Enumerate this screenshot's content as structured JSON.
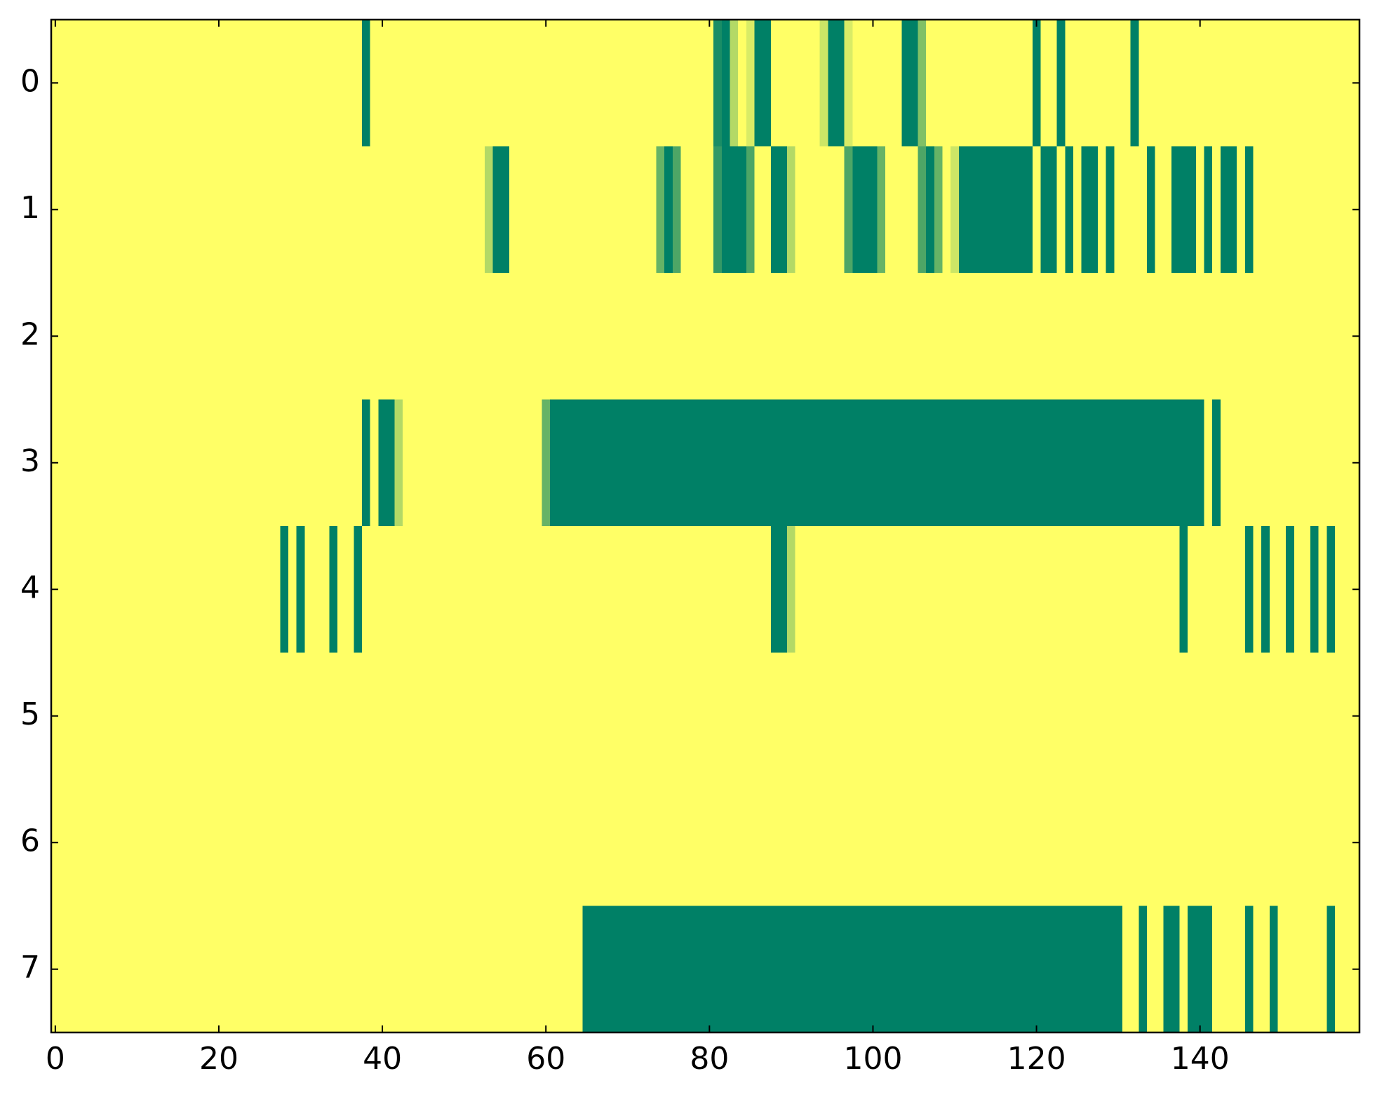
{
  "chart_data": {
    "type": "heatmap",
    "colors": [
      "#008066",
      "#ffff66"
    ],
    "vlim": [
      0,
      1
    ],
    "xlim": [
      -0.5,
      159.5
    ],
    "ylim": [
      7.5,
      -0.5
    ],
    "xticks": [
      0,
      20,
      40,
      60,
      80,
      100,
      120,
      140
    ],
    "yticks": [
      0,
      1,
      2,
      3,
      4,
      5,
      6,
      7
    ],
    "values": [
      [
        1,
        1,
        1,
        1,
        1,
        1,
        1,
        1,
        1,
        1,
        1,
        1,
        1,
        1,
        1,
        1,
        1,
        1,
        1,
        1,
        1,
        1,
        1,
        1,
        1,
        1,
        1,
        1,
        1,
        1,
        1,
        1,
        1,
        1,
        1,
        1,
        1,
        1,
        0,
        1,
        1,
        1,
        1,
        1,
        1,
        1,
        1,
        1,
        1,
        1,
        1,
        1,
        1,
        1,
        1,
        1,
        1,
        1,
        1,
        1,
        1,
        1,
        1,
        1,
        1,
        1,
        1,
        1,
        1,
        1,
        1,
        1,
        1,
        1,
        1,
        1,
        1,
        1,
        1,
        1,
        1,
        0.1,
        0,
        0.7,
        1,
        0.85,
        0,
        0,
        1,
        1,
        1,
        1,
        1,
        1,
        0.8,
        0,
        0,
        0.85,
        1,
        1,
        1,
        1,
        1,
        1,
        0,
        0,
        0.5,
        1,
        1,
        1,
        1,
        1,
        1,
        1,
        1,
        1,
        1,
        1,
        1,
        1,
        0,
        1,
        1,
        0,
        1,
        1,
        1,
        1,
        1,
        1,
        1,
        1,
        0,
        1,
        1,
        1,
        1,
        1,
        1,
        1,
        1,
        1,
        1,
        1,
        1,
        1,
        1,
        1,
        1,
        1,
        1,
        1,
        1,
        1,
        1,
        1,
        1,
        1,
        1,
        1
      ],
      [
        1,
        1,
        1,
        1,
        1,
        1,
        1,
        1,
        1,
        1,
        1,
        1,
        1,
        1,
        1,
        1,
        1,
        1,
        1,
        1,
        1,
        1,
        1,
        1,
        1,
        1,
        1,
        1,
        1,
        1,
        1,
        1,
        1,
        1,
        1,
        1,
        1,
        1,
        1,
        1,
        1,
        1,
        1,
        1,
        1,
        1,
        1,
        1,
        1,
        1,
        1,
        1,
        1,
        0.7,
        0,
        0,
        1,
        1,
        1,
        1,
        1,
        1,
        1,
        1,
        1,
        1,
        1,
        1,
        1,
        1,
        1,
        1,
        1,
        1,
        0.4,
        0,
        0.3,
        1,
        1,
        1,
        1,
        0.2,
        0,
        0,
        0,
        0.3,
        1,
        1,
        0,
        0,
        0.7,
        1,
        1,
        1,
        1,
        1,
        1,
        0.3,
        0,
        0,
        0,
        0.4,
        1,
        1,
        1,
        1,
        0.3,
        0,
        0.4,
        1,
        0.8,
        0,
        0,
        0,
        0,
        0,
        0,
        0,
        0,
        0,
        1,
        0,
        0,
        1,
        0,
        1,
        0,
        0,
        1,
        0,
        1,
        1,
        1,
        1,
        0,
        1,
        1,
        0,
        0,
        0,
        1,
        0,
        1,
        0,
        0,
        1,
        0,
        1,
        1,
        1,
        1,
        1,
        1,
        1,
        1,
        1,
        1,
        1,
        1,
        1
      ],
      [
        1,
        1,
        1,
        1,
        1,
        1,
        1,
        1,
        1,
        1,
        1,
        1,
        1,
        1,
        1,
        1,
        1,
        1,
        1,
        1,
        1,
        1,
        1,
        1,
        1,
        1,
        1,
        1,
        1,
        1,
        1,
        1,
        1,
        1,
        1,
        1,
        1,
        1,
        1,
        1,
        1,
        1,
        1,
        1,
        1,
        1,
        1,
        1,
        1,
        1,
        1,
        1,
        1,
        1,
        1,
        1,
        1,
        1,
        1,
        1,
        1,
        1,
        1,
        1,
        1,
        1,
        1,
        1,
        1,
        1,
        1,
        1,
        1,
        1,
        1,
        1,
        1,
        1,
        1,
        1,
        1,
        1,
        1,
        1,
        1,
        1,
        1,
        1,
        1,
        1,
        1,
        1,
        1,
        1,
        1,
        1,
        1,
        1,
        1,
        1,
        1,
        1,
        1,
        1,
        1,
        1,
        1,
        1,
        1,
        1,
        1,
        1,
        1,
        1,
        1,
        1,
        1,
        1,
        1,
        1,
        1,
        1,
        1,
        1,
        1,
        1,
        1,
        1,
        1,
        1,
        1,
        1,
        1,
        1,
        1,
        1,
        1,
        1,
        1,
        1,
        1,
        1,
        1,
        1,
        1,
        1,
        1,
        1,
        1,
        1,
        1,
        1,
        1,
        1,
        1,
        1,
        1,
        1,
        1,
        1
      ],
      [
        1,
        1,
        1,
        1,
        1,
        1,
        1,
        1,
        1,
        1,
        1,
        1,
        1,
        1,
        1,
        1,
        1,
        1,
        1,
        1,
        1,
        1,
        1,
        1,
        1,
        1,
        1,
        1,
        1,
        1,
        1,
        1,
        1,
        1,
        1,
        1,
        1,
        1,
        0,
        1,
        0,
        0,
        0.7,
        1,
        1,
        1,
        1,
        1,
        1,
        1,
        1,
        1,
        1,
        1,
        1,
        1,
        1,
        1,
        1,
        1,
        0.4,
        0,
        0,
        0,
        0,
        0,
        0,
        0,
        0,
        0,
        0,
        0,
        0,
        0,
        0,
        0,
        0,
        0,
        0,
        0,
        0,
        0,
        0,
        0,
        0,
        0,
        0,
        0,
        0,
        0,
        0,
        0,
        0,
        0,
        0,
        0,
        0,
        0,
        0,
        0,
        0,
        0,
        0,
        0,
        0,
        0,
        0,
        0,
        0,
        0,
        0,
        0,
        0,
        0,
        0,
        0,
        0,
        0,
        0,
        0,
        0,
        0,
        0,
        0,
        0,
        0,
        0,
        0,
        0,
        0,
        0,
        0,
        0,
        0,
        0,
        0,
        0,
        0,
        0,
        0,
        0,
        1,
        0,
        1,
        1,
        1,
        1,
        1,
        1,
        1,
        1,
        1,
        1,
        1,
        1,
        1,
        1,
        1,
        1,
        1
      ],
      [
        1,
        1,
        1,
        1,
        1,
        1,
        1,
        1,
        1,
        1,
        1,
        1,
        1,
        1,
        1,
        1,
        1,
        1,
        1,
        1,
        1,
        1,
        1,
        1,
        1,
        1,
        1,
        1,
        0,
        1,
        0,
        1,
        1,
        1,
        0,
        1,
        1,
        0,
        1,
        1,
        1,
        1,
        1,
        1,
        1,
        1,
        1,
        1,
        1,
        1,
        1,
        1,
        1,
        1,
        1,
        1,
        1,
        1,
        1,
        1,
        1,
        1,
        1,
        1,
        1,
        1,
        1,
        1,
        1,
        1,
        1,
        1,
        1,
        1,
        1,
        1,
        1,
        1,
        1,
        1,
        1,
        1,
        1,
        1,
        1,
        1,
        1,
        1,
        0,
        0,
        0.7,
        1,
        1,
        1,
        1,
        1,
        1,
        1,
        1,
        1,
        1,
        1,
        1,
        1,
        1,
        1,
        1,
        1,
        1,
        1,
        1,
        1,
        1,
        1,
        1,
        1,
        1,
        1,
        1,
        1,
        1,
        1,
        1,
        1,
        1,
        1,
        1,
        1,
        1,
        1,
        1,
        1,
        1,
        1,
        1,
        1,
        1,
        1,
        0,
        1,
        1,
        1,
        1,
        1,
        1,
        1,
        0,
        1,
        0,
        1,
        1,
        0,
        1,
        1,
        0,
        1,
        0,
        1,
        1,
        1
      ],
      [
        1,
        1,
        1,
        1,
        1,
        1,
        1,
        1,
        1,
        1,
        1,
        1,
        1,
        1,
        1,
        1,
        1,
        1,
        1,
        1,
        1,
        1,
        1,
        1,
        1,
        1,
        1,
        1,
        1,
        1,
        1,
        1,
        1,
        1,
        1,
        1,
        1,
        1,
        1,
        1,
        1,
        1,
        1,
        1,
        1,
        1,
        1,
        1,
        1,
        1,
        1,
        1,
        1,
        1,
        1,
        1,
        1,
        1,
        1,
        1,
        1,
        1,
        1,
        1,
        1,
        1,
        1,
        1,
        1,
        1,
        1,
        1,
        1,
        1,
        1,
        1,
        1,
        1,
        1,
        1,
        1,
        1,
        1,
        1,
        1,
        1,
        1,
        1,
        1,
        1,
        1,
        1,
        1,
        1,
        1,
        1,
        1,
        1,
        1,
        1,
        1,
        1,
        1,
        1,
        1,
        1,
        1,
        1,
        1,
        1,
        1,
        1,
        1,
        1,
        1,
        1,
        1,
        1,
        1,
        1,
        1,
        1,
        1,
        1,
        1,
        1,
        1,
        1,
        1,
        1,
        1,
        1,
        1,
        1,
        1,
        1,
        1,
        1,
        1,
        1,
        1,
        1,
        1,
        1,
        1,
        1,
        1,
        1,
        1,
        1,
        1,
        1,
        1,
        1,
        1,
        1,
        1,
        1,
        1,
        1
      ],
      [
        1,
        1,
        1,
        1,
        1,
        1,
        1,
        1,
        1,
        1,
        1,
        1,
        1,
        1,
        1,
        1,
        1,
        1,
        1,
        1,
        1,
        1,
        1,
        1,
        1,
        1,
        1,
        1,
        1,
        1,
        1,
        1,
        1,
        1,
        1,
        1,
        1,
        1,
        1,
        1,
        1,
        1,
        1,
        1,
        1,
        1,
        1,
        1,
        1,
        1,
        1,
        1,
        1,
        1,
        1,
        1,
        1,
        1,
        1,
        1,
        1,
        1,
        1,
        1,
        1,
        1,
        1,
        1,
        1,
        1,
        1,
        1,
        1,
        1,
        1,
        1,
        1,
        1,
        1,
        1,
        1,
        1,
        1,
        1,
        1,
        1,
        1,
        1,
        1,
        1,
        1,
        1,
        1,
        1,
        1,
        1,
        1,
        1,
        1,
        1,
        1,
        1,
        1,
        1,
        1,
        1,
        1,
        1,
        1,
        1,
        1,
        1,
        1,
        1,
        1,
        1,
        1,
        1,
        1,
        1,
        1,
        1,
        1,
        1,
        1,
        1,
        1,
        1,
        1,
        1,
        1,
        1,
        1,
        1,
        1,
        1,
        1,
        1,
        1,
        1,
        1,
        1,
        1,
        1,
        1,
        1,
        1,
        1,
        1,
        1,
        1,
        1,
        1,
        1,
        1,
        1,
        1,
        1,
        1,
        1
      ],
      [
        1,
        1,
        1,
        1,
        1,
        1,
        1,
        1,
        1,
        1,
        1,
        1,
        1,
        1,
        1,
        1,
        1,
        1,
        1,
        1,
        1,
        1,
        1,
        1,
        1,
        1,
        1,
        1,
        1,
        1,
        1,
        1,
        1,
        1,
        1,
        1,
        1,
        1,
        1,
        1,
        1,
        1,
        1,
        1,
        1,
        1,
        1,
        1,
        1,
        1,
        1,
        1,
        1,
        1,
        1,
        1,
        1,
        1,
        1,
        1,
        1,
        1,
        1,
        1,
        1,
        0,
        0,
        0,
        0,
        0,
        0,
        0,
        0,
        0,
        0,
        0,
        0,
        0,
        0,
        0,
        0,
        0,
        0,
        0,
        0,
        0,
        0,
        0,
        0,
        0,
        0,
        0,
        0,
        0,
        0,
        0,
        0,
        0,
        0,
        0,
        0,
        0,
        0,
        0,
        0,
        0,
        0,
        0,
        0,
        0,
        0,
        0,
        0,
        0,
        0,
        0,
        0,
        0,
        0,
        0,
        0,
        0,
        0,
        0,
        0,
        0,
        0,
        0,
        0,
        0,
        0,
        1,
        1,
        0,
        1,
        1,
        0,
        0,
        1,
        0,
        0,
        0,
        1,
        1,
        1,
        1,
        0,
        1,
        1,
        0,
        1,
        1,
        1,
        1,
        1,
        1,
        0,
        1,
        1,
        1
      ]
    ]
  }
}
